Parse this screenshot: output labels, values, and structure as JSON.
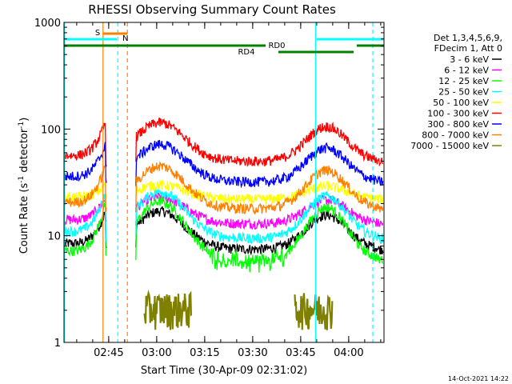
{
  "chart_data": {
    "type": "line",
    "title": "RHESSI Observing Summary Count Rates",
    "xlabel": "Start Time (30-Apr-09 02:31:02)",
    "ylabel_main": "Count Rate (s",
    "ylabel_sup1": "-1",
    "ylabel_mid": " detector",
    "ylabel_sup2": "-1",
    "ylabel_end": ")",
    "y_scale": "log",
    "ylim": [
      1,
      1000
    ],
    "xlim_minutes": [
      0,
      100
    ],
    "x_ticks": [
      {
        "label": "02:45",
        "minute": 13.97
      },
      {
        "label": "03:00",
        "minute": 28.97
      },
      {
        "label": "03:15",
        "minute": 43.97
      },
      {
        "label": "03:30",
        "minute": 58.97
      },
      {
        "label": "03:45",
        "minute": 73.97
      },
      {
        "label": "04:00",
        "minute": 88.97
      }
    ],
    "y_ticks": [
      {
        "label": "1",
        "value": 1
      },
      {
        "label": "10",
        "value": 10
      },
      {
        "label": "100",
        "value": 100
      },
      {
        "label": "1000",
        "value": 1000
      }
    ],
    "legend_header": [
      "Det 1,3,4,5,6,9,",
      "FDecim 1, Att 0"
    ],
    "legend_placement": "right",
    "series": [
      {
        "name": "3 - 6 keV",
        "color": "#000000",
        "base": 7.5,
        "peak": 17
      },
      {
        "name": "6 - 12 keV",
        "color": "#ff00ff",
        "base": 13,
        "peak": 23
      },
      {
        "name": "12 - 25 keV",
        "color": "#00ff00",
        "base": 6,
        "peak": 21
      },
      {
        "name": "25 - 50 keV",
        "color": "#00ffff",
        "base": 9.5,
        "peak": 26
      },
      {
        "name": "50 - 100 keV",
        "color": "#ffff00",
        "base": 22,
        "peak": 30
      },
      {
        "name": "100 - 300 keV",
        "color": "#ff0000",
        "base": 50,
        "peak": 115
      },
      {
        "name": "300 - 800 keV",
        "color": "#0000ff",
        "base": 32,
        "peak": 72
      },
      {
        "name": "800 - 7000 keV",
        "color": "#ff8000",
        "base": 18,
        "peak": 45
      },
      {
        "name": "7000 - 15000 keV",
        "color": "#808000",
        "base": 1,
        "peak": 3
      }
    ],
    "flags": [
      {
        "label": "S",
        "color": "#ff8000"
      },
      {
        "label": "N",
        "color": "#00ffff"
      },
      {
        "label": "RD0",
        "color": "#008000"
      },
      {
        "label": "RD4",
        "color": "#008000"
      }
    ],
    "grid": false
  },
  "footer": {
    "date": "14-Oct-2021 14:22"
  }
}
